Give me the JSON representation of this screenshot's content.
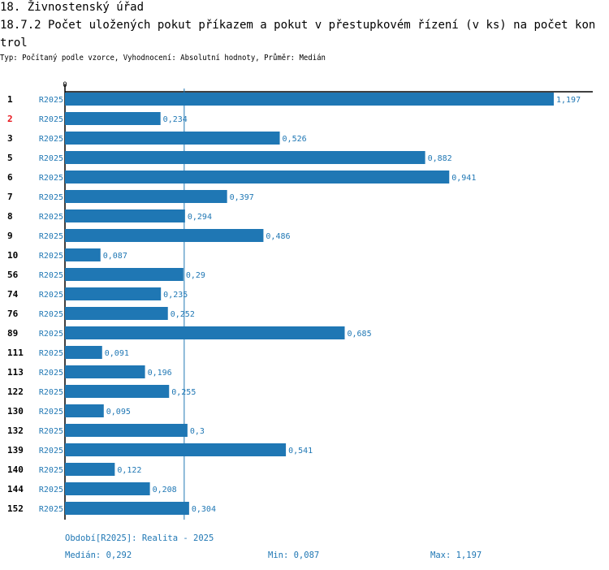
{
  "header": {
    "section": "18. Živnostenský úřad",
    "title": "18.7.2 Počet uložených pokut příkazem a pokut v přestupkovém řízení (v ks) na počet kontrol",
    "subtitle": "Typ: Počítaný podle vzorce, Vyhodnocení: Absolutní hodnoty, Průměr: Medián"
  },
  "chart_data": {
    "type": "bar",
    "orientation": "horizontal",
    "series_label": "R2025",
    "xlim": [
      0,
      1.197
    ],
    "x_tick": "0",
    "median": 0.292,
    "categories": [
      "1",
      "2",
      "3",
      "5",
      "6",
      "7",
      "8",
      "9",
      "10",
      "56",
      "74",
      "76",
      "89",
      "111",
      "113",
      "122",
      "130",
      "132",
      "139",
      "140",
      "144",
      "152"
    ],
    "highlighted": [
      "2"
    ],
    "values": [
      1.197,
      0.234,
      0.526,
      0.882,
      0.941,
      0.397,
      0.294,
      0.486,
      0.087,
      0.29,
      0.235,
      0.252,
      0.685,
      0.091,
      0.196,
      0.255,
      0.095,
      0.3,
      0.541,
      0.122,
      0.208,
      0.304
    ],
    "value_labels": [
      "1,197",
      "0,234",
      "0,526",
      "0,882",
      "0,941",
      "0,397",
      "0,294",
      "0,486",
      "0,087",
      "0,29",
      "0,235",
      "0,252",
      "0,685",
      "0,091",
      "0,196",
      "0,255",
      "0,095",
      "0,3",
      "0,541",
      "0,122",
      "0,208",
      "0,304"
    ],
    "colors": {
      "bar": "#1f77b4",
      "highlight": "#e8141b"
    }
  },
  "footer": {
    "period": "Období[R2025]: Realita - 2025",
    "median": "Medián: 0,292",
    "min": "Min: 0,087",
    "max": "Max: 1,197"
  }
}
